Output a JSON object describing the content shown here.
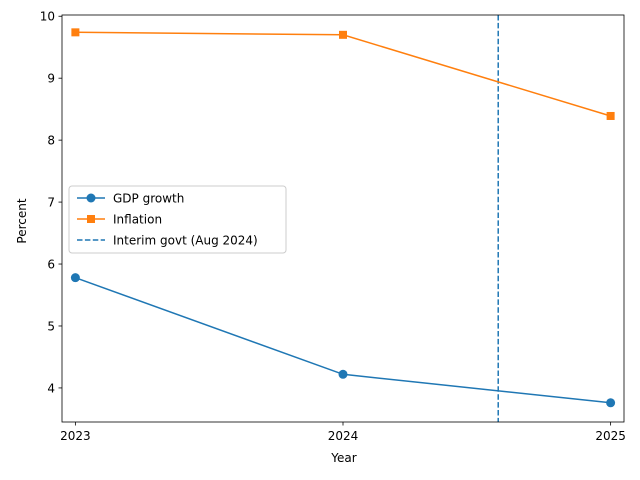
{
  "chart_data": {
    "type": "line",
    "x": [
      2023,
      2024,
      2025
    ],
    "xticks": [
      "2023",
      "2024",
      "2025"
    ],
    "yticks": [
      "4",
      "5",
      "6",
      "7",
      "8",
      "9",
      "10"
    ],
    "xlabel": "Year",
    "ylabel": "Percent",
    "xlim": [
      2022.95,
      2025.05
    ],
    "ylim": [
      3.45,
      10.02
    ],
    "grid": false,
    "legend_position": "center-left",
    "series": [
      {
        "name": "GDP growth",
        "values": [
          5.78,
          4.22,
          3.76
        ],
        "color": "#1f77b4",
        "marker": "circle"
      },
      {
        "name": "Inflation",
        "values": [
          9.74,
          9.7,
          8.39
        ],
        "color": "#ff7f0e",
        "marker": "square"
      }
    ],
    "annotations": [
      {
        "name": "Interim govt (Aug 2024)",
        "type": "vline",
        "x": 2024.58,
        "color": "#1f77b4",
        "style": "dashed"
      }
    ]
  }
}
